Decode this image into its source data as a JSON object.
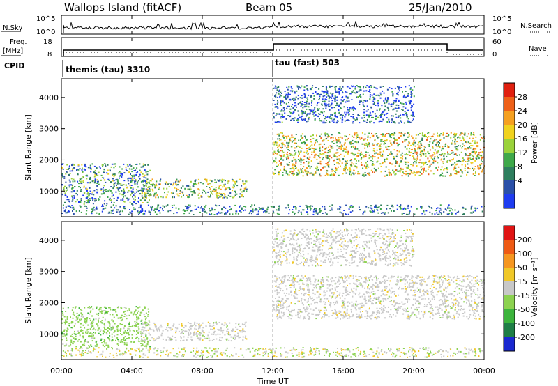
{
  "header": {
    "station": "Wallops Island (fitACF)",
    "beam": "Beam 05",
    "date": "25/Jan/2010"
  },
  "params": {
    "nsky_label": "N.Sky",
    "nsearch_label": "N.Search",
    "nsky_ticks": [
      "10^5",
      "10^0"
    ],
    "nsearch_ticks": [
      "10^5",
      "10^0"
    ],
    "freq_label_top": "Freq.",
    "freq_label_unit": "[MHz]",
    "freq_ticks": [
      "18",
      "8"
    ],
    "nave_label": "Nave",
    "nave_ticks": [
      "60",
      "0"
    ],
    "cpid_label": "CPID",
    "cpid_segments": [
      {
        "label": "themis (tau) 3310",
        "start": "00:00",
        "end": "12:00"
      },
      {
        "label": "tau (fast) 503",
        "start": "12:00",
        "end": "24:00"
      }
    ]
  },
  "chart_data": [
    {
      "type": "heatmap",
      "name": "power",
      "ylabel": "Slant Range [km]",
      "xlabel": "Time UT",
      "x_ticks": [
        "00:00",
        "04:00",
        "08:00",
        "12:00",
        "16:00",
        "20:00",
        "00:00"
      ],
      "y_ticks": [
        "1000",
        "2000",
        "3000",
        "4000"
      ],
      "xlim_hours": [
        0,
        24
      ],
      "ylim_km": [
        180,
        4600
      ],
      "colorbar": {
        "label": "Power [dB]",
        "ticks": [
          "4",
          "8",
          "12",
          "16",
          "20",
          "24",
          "28"
        ],
        "colors": [
          "#1e3cf0",
          "#2a50a8",
          "#2e7e5e",
          "#3fa84a",
          "#9ad23a",
          "#f0d21e",
          "#f5a020",
          "#ee6018",
          "#e02010"
        ]
      },
      "echo_regions": [
        {
          "t_start": 0.0,
          "t_end": 5.0,
          "r_start": 600,
          "r_end": 1900,
          "level": 0.3
        },
        {
          "t_start": 4.5,
          "t_end": 10.5,
          "r_start": 800,
          "r_end": 1400,
          "level": 0.45
        },
        {
          "t_start": 12.0,
          "t_end": 24.0,
          "r_start": 1500,
          "r_end": 2900,
          "level": 0.55
        },
        {
          "t_start": 12.0,
          "t_end": 20.0,
          "r_start": 3200,
          "r_end": 4400,
          "level": 0.15
        }
      ]
    },
    {
      "type": "heatmap",
      "name": "velocity",
      "ylabel": "Slant Range [km]",
      "xlabel": "Time UT",
      "x_ticks": [
        "00:00",
        "04:00",
        "08:00",
        "12:00",
        "16:00",
        "20:00",
        "00:00"
      ],
      "y_ticks": [
        "1000",
        "2000",
        "3000",
        "4000"
      ],
      "xlim_hours": [
        0,
        24
      ],
      "ylim_km": [
        180,
        4600
      ],
      "colorbar": {
        "label": "Velocity [m s⁻¹]",
        "ticks": [
          "200",
          "100",
          "50",
          "15",
          "-15",
          "-50",
          "-100",
          "-200"
        ],
        "colors": [
          "#1a28d0",
          "#1e7e46",
          "#3cb43c",
          "#8cd250",
          "#c8c8c8",
          "#f0c828",
          "#f59620",
          "#ee5a14",
          "#e01414"
        ]
      },
      "echo_regions": [
        {
          "t_start": 0.0,
          "t_end": 5.0,
          "r_start": 600,
          "r_end": 1900,
          "color": "green"
        },
        {
          "t_start": 4.5,
          "t_end": 10.5,
          "r_start": 800,
          "r_end": 1400,
          "color": "gray"
        },
        {
          "t_start": 12.0,
          "t_end": 24.0,
          "r_start": 1500,
          "r_end": 2900,
          "color": "gray"
        },
        {
          "t_start": 12.0,
          "t_end": 20.0,
          "r_start": 3200,
          "r_end": 4400,
          "color": "gray"
        }
      ]
    }
  ]
}
